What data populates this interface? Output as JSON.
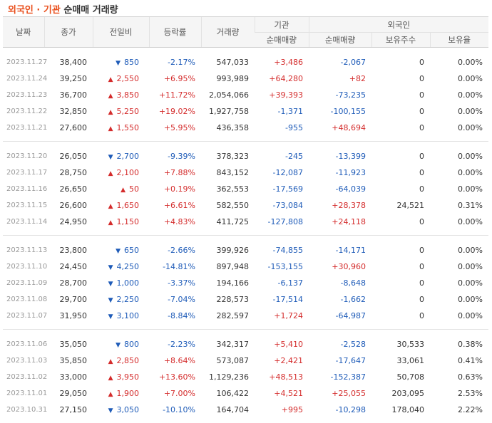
{
  "title": {
    "org": "외국인",
    "sep": "·",
    "inst": "기관",
    "rest": "순매매 거래량"
  },
  "headers": {
    "date": "날짜",
    "close": "종가",
    "change": "전일비",
    "rate": "등락률",
    "volume": "거래량",
    "inst_group": "기관",
    "foreign_group": "외국인",
    "inst_net": "순매매량",
    "foreign_net": "순매매량",
    "foreign_hold": "보유주수",
    "foreign_ratio": "보유율"
  },
  "colors": {
    "up": "#d42c2c",
    "down": "#1e5bb8",
    "accent": "#e94e1b"
  },
  "icons": {
    "up": "triangle-up-icon",
    "down": "triangle-down-icon"
  },
  "groups": [
    [
      {
        "date": "2023.11.27",
        "close": "38,400",
        "dir": "down",
        "change": "850",
        "rate": "-2.17%",
        "volume": "547,033",
        "inst": "+3,486",
        "foreign": "-2,067",
        "hold": "0",
        "ratio": "0.00%"
      },
      {
        "date": "2023.11.24",
        "close": "39,250",
        "dir": "up",
        "change": "2,550",
        "rate": "+6.95%",
        "volume": "993,989",
        "inst": "+64,280",
        "foreign": "+82",
        "hold": "0",
        "ratio": "0.00%"
      },
      {
        "date": "2023.11.23",
        "close": "36,700",
        "dir": "up",
        "change": "3,850",
        "rate": "+11.72%",
        "volume": "2,054,066",
        "inst": "+39,393",
        "foreign": "-73,235",
        "hold": "0",
        "ratio": "0.00%"
      },
      {
        "date": "2023.11.22",
        "close": "32,850",
        "dir": "up",
        "change": "5,250",
        "rate": "+19.02%",
        "volume": "1,927,758",
        "inst": "-1,371",
        "foreign": "-100,155",
        "hold": "0",
        "ratio": "0.00%"
      },
      {
        "date": "2023.11.21",
        "close": "27,600",
        "dir": "up",
        "change": "1,550",
        "rate": "+5.95%",
        "volume": "436,358",
        "inst": "-955",
        "foreign": "+48,694",
        "hold": "0",
        "ratio": "0.00%"
      }
    ],
    [
      {
        "date": "2023.11.20",
        "close": "26,050",
        "dir": "down",
        "change": "2,700",
        "rate": "-9.39%",
        "volume": "378,323",
        "inst": "-245",
        "foreign": "-13,399",
        "hold": "0",
        "ratio": "0.00%"
      },
      {
        "date": "2023.11.17",
        "close": "28,750",
        "dir": "up",
        "change": "2,100",
        "rate": "+7.88%",
        "volume": "843,152",
        "inst": "-12,087",
        "foreign": "-11,923",
        "hold": "0",
        "ratio": "0.00%"
      },
      {
        "date": "2023.11.16",
        "close": "26,650",
        "dir": "up",
        "change": "50",
        "rate": "+0.19%",
        "volume": "362,553",
        "inst": "-17,569",
        "foreign": "-64,039",
        "hold": "0",
        "ratio": "0.00%"
      },
      {
        "date": "2023.11.15",
        "close": "26,600",
        "dir": "up",
        "change": "1,650",
        "rate": "+6.61%",
        "volume": "582,550",
        "inst": "-73,084",
        "foreign": "+28,378",
        "hold": "24,521",
        "ratio": "0.31%"
      },
      {
        "date": "2023.11.14",
        "close": "24,950",
        "dir": "up",
        "change": "1,150",
        "rate": "+4.83%",
        "volume": "411,725",
        "inst": "-127,808",
        "foreign": "+24,118",
        "hold": "0",
        "ratio": "0.00%"
      }
    ],
    [
      {
        "date": "2023.11.13",
        "close": "23,800",
        "dir": "down",
        "change": "650",
        "rate": "-2.66%",
        "volume": "399,926",
        "inst": "-74,855",
        "foreign": "-14,171",
        "hold": "0",
        "ratio": "0.00%"
      },
      {
        "date": "2023.11.10",
        "close": "24,450",
        "dir": "down",
        "change": "4,250",
        "rate": "-14.81%",
        "volume": "897,948",
        "inst": "-153,155",
        "foreign": "+30,960",
        "hold": "0",
        "ratio": "0.00%"
      },
      {
        "date": "2023.11.09",
        "close": "28,700",
        "dir": "down",
        "change": "1,000",
        "rate": "-3.37%",
        "volume": "194,166",
        "inst": "-6,137",
        "foreign": "-8,648",
        "hold": "0",
        "ratio": "0.00%"
      },
      {
        "date": "2023.11.08",
        "close": "29,700",
        "dir": "down",
        "change": "2,250",
        "rate": "-7.04%",
        "volume": "228,573",
        "inst": "-17,514",
        "foreign": "-1,662",
        "hold": "0",
        "ratio": "0.00%"
      },
      {
        "date": "2023.11.07",
        "close": "31,950",
        "dir": "down",
        "change": "3,100",
        "rate": "-8.84%",
        "volume": "282,597",
        "inst": "+1,724",
        "foreign": "-64,987",
        "hold": "0",
        "ratio": "0.00%"
      }
    ],
    [
      {
        "date": "2023.11.06",
        "close": "35,050",
        "dir": "down",
        "change": "800",
        "rate": "-2.23%",
        "volume": "342,317",
        "inst": "+5,410",
        "foreign": "-2,528",
        "hold": "30,533",
        "ratio": "0.38%"
      },
      {
        "date": "2023.11.03",
        "close": "35,850",
        "dir": "up",
        "change": "2,850",
        "rate": "+8.64%",
        "volume": "573,087",
        "inst": "+2,421",
        "foreign": "-17,647",
        "hold": "33,061",
        "ratio": "0.41%"
      },
      {
        "date": "2023.11.02",
        "close": "33,000",
        "dir": "up",
        "change": "3,950",
        "rate": "+13.60%",
        "volume": "1,129,236",
        "inst": "+48,513",
        "foreign": "-152,387",
        "hold": "50,708",
        "ratio": "0.63%"
      },
      {
        "date": "2023.11.01",
        "close": "29,050",
        "dir": "up",
        "change": "1,900",
        "rate": "+7.00%",
        "volume": "106,422",
        "inst": "+4,521",
        "foreign": "+25,055",
        "hold": "203,095",
        "ratio": "2.53%"
      },
      {
        "date": "2023.10.31",
        "close": "27,150",
        "dir": "down",
        "change": "3,050",
        "rate": "-10.10%",
        "volume": "164,704",
        "inst": "+995",
        "foreign": "-10,298",
        "hold": "178,040",
        "ratio": "2.22%"
      }
    ]
  ]
}
